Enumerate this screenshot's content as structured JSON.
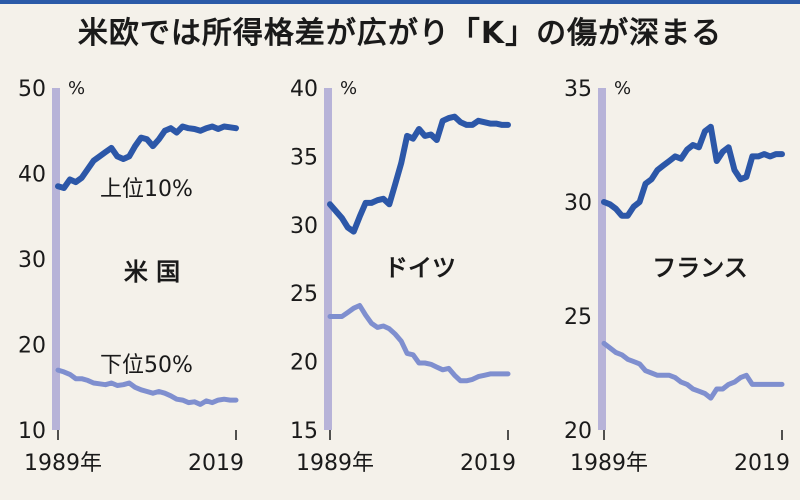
{
  "title": "米欧では所得格差が広がり「K」の傷が深まる",
  "colors": {
    "top": "#2c57a8",
    "bottom": "#7f8fcf",
    "axis": "#b7b3d8"
  },
  "chart_data": [
    {
      "type": "line",
      "country": "米 国",
      "unit": "%",
      "ylim": [
        10,
        50
      ],
      "yticks": [
        "10",
        "20",
        "30",
        "40",
        "50"
      ],
      "xticks": [
        "1989年",
        "2019"
      ],
      "series": [
        {
          "name": "上位10%",
          "x": [
            1989,
            1990,
            1991,
            1992,
            1993,
            1994,
            1995,
            1996,
            1997,
            1998,
            1999,
            2000,
            2001,
            2002,
            2003,
            2004,
            2005,
            2006,
            2007,
            2008,
            2009,
            2010,
            2011,
            2012,
            2013,
            2014,
            2015,
            2016,
            2017,
            2018,
            2019
          ],
          "y": [
            38.5,
            38.3,
            39.3,
            39.0,
            39.5,
            40.5,
            41.5,
            42.0,
            42.5,
            43.0,
            42.0,
            41.7,
            42.0,
            43.2,
            44.2,
            44.0,
            43.2,
            44.0,
            45.0,
            45.3,
            44.8,
            45.5,
            45.3,
            45.2,
            45.0,
            45.3,
            45.5,
            45.2,
            45.5,
            45.4,
            45.3
          ]
        },
        {
          "name": "下位50%",
          "x": [
            1989,
            1990,
            1991,
            1992,
            1993,
            1994,
            1995,
            1996,
            1997,
            1998,
            1999,
            2000,
            2001,
            2002,
            2003,
            2004,
            2005,
            2006,
            2007,
            2008,
            2009,
            2010,
            2011,
            2012,
            2013,
            2014,
            2015,
            2016,
            2017,
            2018,
            2019
          ],
          "y": [
            17.0,
            16.8,
            16.5,
            16.0,
            16.0,
            15.8,
            15.5,
            15.4,
            15.3,
            15.5,
            15.2,
            15.3,
            15.5,
            15.0,
            14.7,
            14.5,
            14.3,
            14.5,
            14.3,
            14.0,
            13.6,
            13.5,
            13.2,
            13.3,
            13.0,
            13.4,
            13.2,
            13.5,
            13.6,
            13.5,
            13.5
          ]
        }
      ]
    },
    {
      "type": "line",
      "country": "ドイツ",
      "unit": "%",
      "ylim": [
        15,
        40
      ],
      "yticks": [
        "15",
        "20",
        "25",
        "30",
        "35",
        "40"
      ],
      "xticks": [
        "1989年",
        "2019"
      ],
      "series": [
        {
          "name": "",
          "x": [
            1989,
            1990,
            1991,
            1992,
            1993,
            1994,
            1995,
            1996,
            1997,
            1998,
            1999,
            2000,
            2001,
            2002,
            2003,
            2004,
            2005,
            2006,
            2007,
            2008,
            2009,
            2010,
            2011,
            2012,
            2013,
            2014,
            2015,
            2016,
            2017,
            2018,
            2019
          ],
          "y": [
            31.5,
            31.0,
            30.5,
            29.8,
            29.5,
            30.6,
            31.6,
            31.6,
            31.8,
            31.9,
            31.5,
            33.0,
            34.5,
            36.5,
            36.3,
            37.0,
            36.5,
            36.6,
            36.2,
            37.6,
            37.8,
            37.9,
            37.5,
            37.3,
            37.3,
            37.6,
            37.5,
            37.4,
            37.4,
            37.3,
            37.3
          ]
        },
        {
          "name": "",
          "x": [
            1989,
            1990,
            1991,
            1992,
            1993,
            1994,
            1995,
            1996,
            1997,
            1998,
            1999,
            2000,
            2001,
            2002,
            2003,
            2004,
            2005,
            2006,
            2007,
            2008,
            2009,
            2010,
            2011,
            2012,
            2013,
            2014,
            2015,
            2016,
            2017,
            2018,
            2019
          ],
          "y": [
            23.3,
            23.3,
            23.3,
            23.6,
            23.9,
            24.1,
            23.4,
            22.8,
            22.5,
            22.6,
            22.4,
            22.0,
            21.5,
            20.6,
            20.5,
            19.9,
            19.9,
            19.8,
            19.6,
            19.4,
            19.5,
            19.0,
            18.6,
            18.6,
            18.7,
            18.9,
            19.0,
            19.1,
            19.1,
            19.1,
            19.1
          ]
        }
      ]
    },
    {
      "type": "line",
      "country": "フランス",
      "unit": "%",
      "ylim": [
        20,
        35
      ],
      "yticks": [
        "20",
        "25",
        "30",
        "35"
      ],
      "xticks": [
        "1989年",
        "2019"
      ],
      "series": [
        {
          "name": "",
          "x": [
            1989,
            1990,
            1991,
            1992,
            1993,
            1994,
            1995,
            1996,
            1997,
            1998,
            1999,
            2000,
            2001,
            2002,
            2003,
            2004,
            2005,
            2006,
            2007,
            2008,
            2009,
            2010,
            2011,
            2012,
            2013,
            2014,
            2015,
            2016,
            2017,
            2018,
            2019
          ],
          "y": [
            30.0,
            29.9,
            29.7,
            29.4,
            29.4,
            29.8,
            30.0,
            30.8,
            31.0,
            31.4,
            31.6,
            31.8,
            32.0,
            31.9,
            32.3,
            32.5,
            32.4,
            33.1,
            33.3,
            31.8,
            32.2,
            32.4,
            31.4,
            31.0,
            31.1,
            32.0,
            32.0,
            32.1,
            32.0,
            32.1,
            32.1
          ]
        },
        {
          "name": "",
          "x": [
            1989,
            1990,
            1991,
            1992,
            1993,
            1994,
            1995,
            1996,
            1997,
            1998,
            1999,
            2000,
            2001,
            2002,
            2003,
            2004,
            2005,
            2006,
            2007,
            2008,
            2009,
            2010,
            2011,
            2012,
            2013,
            2014,
            2015,
            2016,
            2017,
            2018,
            2019
          ],
          "y": [
            23.8,
            23.6,
            23.4,
            23.3,
            23.1,
            23.0,
            22.9,
            22.6,
            22.5,
            22.4,
            22.4,
            22.4,
            22.3,
            22.1,
            22.0,
            21.8,
            21.7,
            21.6,
            21.4,
            21.8,
            21.8,
            22.0,
            22.1,
            22.3,
            22.4,
            22.0,
            22.0,
            22.0,
            22.0,
            22.0,
            22.0
          ]
        }
      ]
    }
  ],
  "series_labels": {
    "top": "上位10%",
    "bottom": "下位50%"
  }
}
